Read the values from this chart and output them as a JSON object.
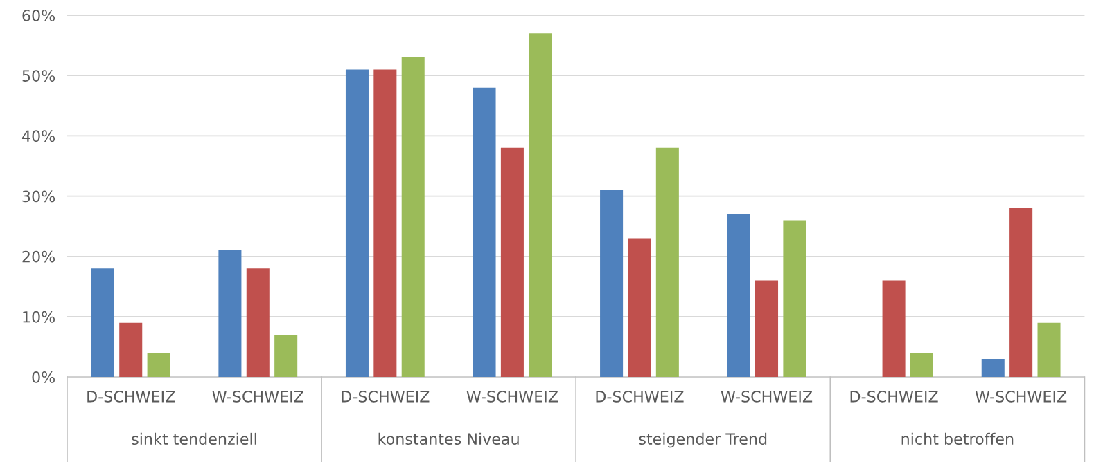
{
  "chart_data": {
    "type": "bar",
    "categories": [
      "D-SCHWEIZ",
      "W-SCHWEIZ",
      "D-SCHWEIZ",
      "W-SCHWEIZ",
      "D-SCHWEIZ",
      "W-SCHWEIZ",
      "D-SCHWEIZ",
      "W-SCHWEIZ"
    ],
    "series": [
      {
        "color": "#4f81bd",
        "values": [
          18,
          21,
          51,
          48,
          31,
          27,
          null,
          3
        ]
      },
      {
        "color": "#c0504d",
        "values": [
          9,
          18,
          51,
          38,
          23,
          16,
          16,
          28
        ]
      },
      {
        "color": "#9bbb59",
        "values": [
          4,
          7,
          53,
          57,
          38,
          26,
          4,
          9
        ]
      }
    ],
    "annotations": [
      "sinkt tendenziell",
      "konstantes Niveau",
      "steigender Trend",
      "nicht betroffen"
    ],
    "ylim": [
      0,
      60
    ],
    "yticks": [
      {
        "value": 0,
        "label": "0%"
      },
      {
        "value": 10,
        "label": "10%"
      },
      {
        "value": 20,
        "label": "20%"
      },
      {
        "value": 30,
        "label": "30%"
      },
      {
        "value": 40,
        "label": "40%"
      },
      {
        "value": 50,
        "label": "50%"
      },
      {
        "value": 60,
        "label": "60%"
      }
    ],
    "grid": "y",
    "legend": false
  }
}
